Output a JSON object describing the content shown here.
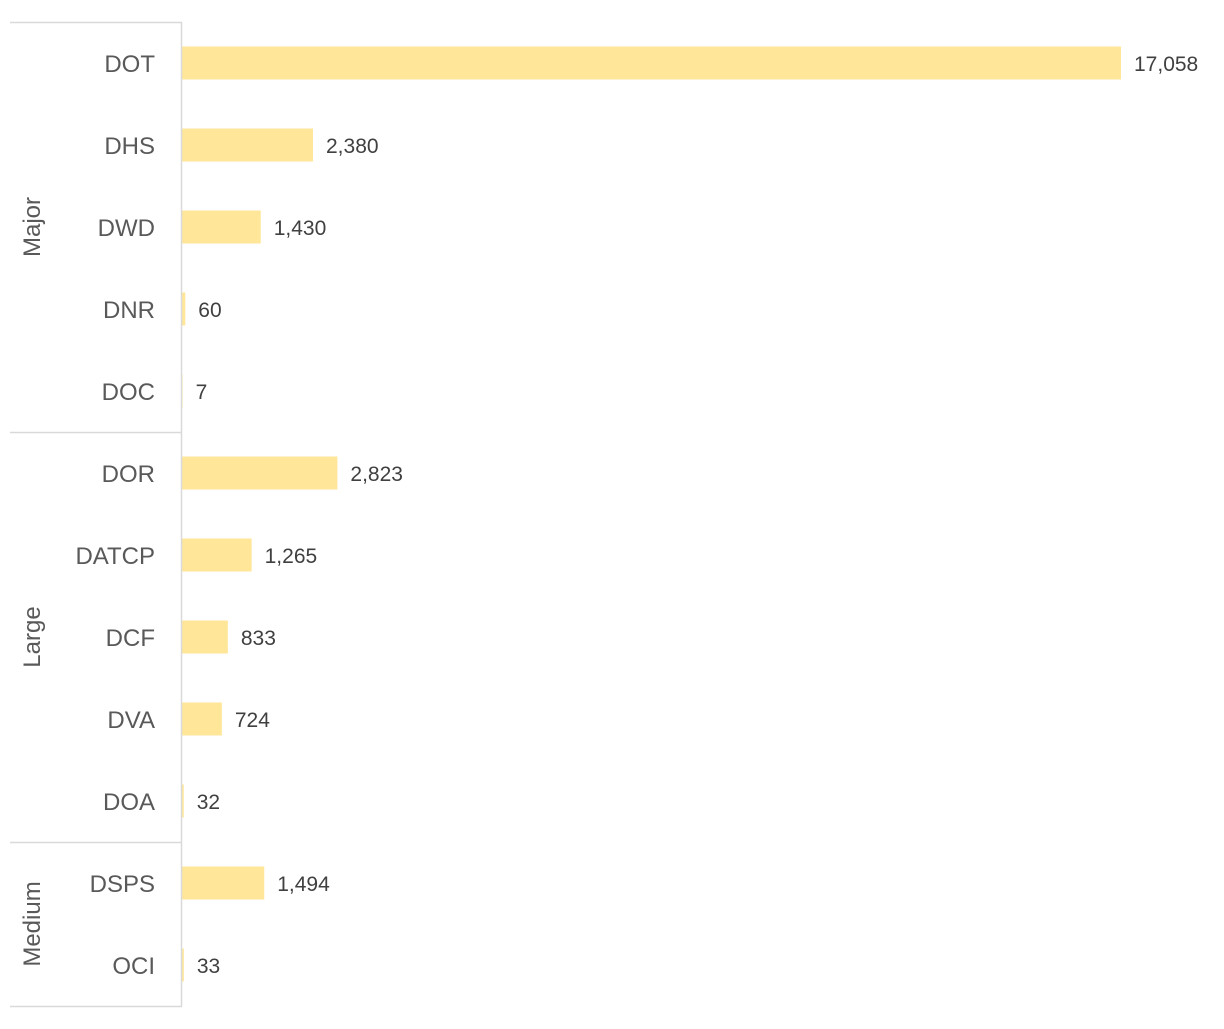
{
  "chart_data": {
    "type": "bar",
    "orientation": "horizontal",
    "title": "",
    "xlabel": "",
    "ylabel": "",
    "xlim": [
      0,
      17058
    ],
    "grid": false,
    "legend": "none",
    "bar_color": "#FFE699",
    "axis_color": "#D9D9D9",
    "groups": [
      {
        "name": "Major",
        "categories": [
          "DOT",
          "DHS",
          "DWD",
          "DNR",
          "DOC"
        ],
        "values": [
          17058,
          2380,
          1430,
          60,
          7
        ],
        "labels": [
          "17,058",
          "2,380",
          "1,430",
          "60",
          "7"
        ]
      },
      {
        "name": "Large",
        "categories": [
          "DOR",
          "DATCP",
          "DCF",
          "DVA",
          "DOA"
        ],
        "values": [
          2823,
          1265,
          833,
          724,
          32
        ],
        "labels": [
          "2,823",
          "1,265",
          "833",
          "724",
          "32"
        ]
      },
      {
        "name": "Medium",
        "categories": [
          "DSPS",
          "OCI"
        ],
        "values": [
          1494,
          33
        ],
        "labels": [
          "1,494",
          "33"
        ]
      }
    ]
  }
}
